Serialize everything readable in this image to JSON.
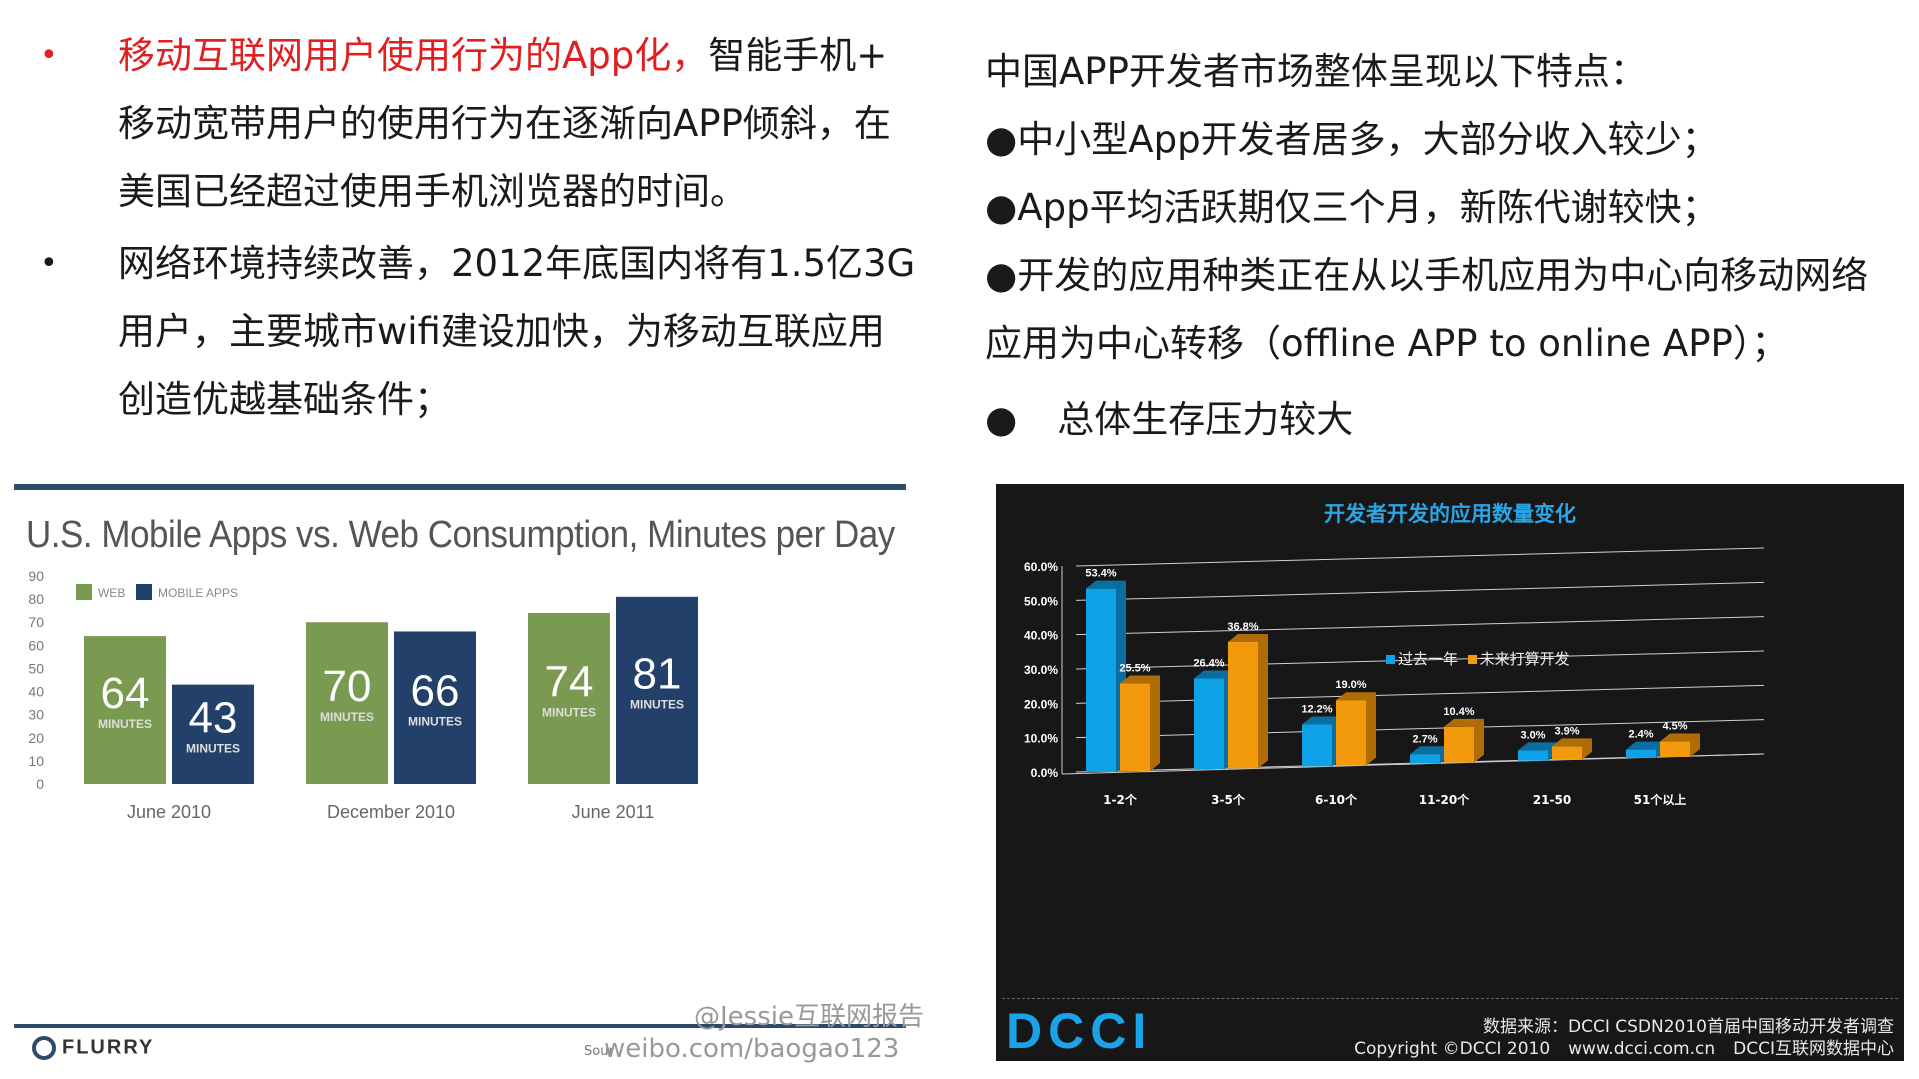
{
  "left_bullets": [
    {
      "bullet": "•",
      "highlight": "移动互联网用户使用行为的App化，",
      "lines": [
        "智能手机+",
        "移动宽带用户的使用行为在逐渐向APP倾斜，在",
        "美国已经超过使用手机浏览器的时间。"
      ]
    },
    {
      "bullet": "•",
      "highlight": "",
      "lines": [
        "网络环境持续改善，2012年底国内将有1.5亿3G",
        "用户，主要城市wifi建设加快，为移动互联应用",
        "创造优越基础条件；"
      ]
    }
  ],
  "right_text": {
    "intro": "中国APP开发者市场整体呈现以下特点：",
    "items": [
      "●中小型App开发者居多，大部分收入较少；",
      "●App平均活跃期仅三个月，新陈代谢较快；",
      "●开发的应用种类正在从以手机应用为中心向移动网络",
      "应用为中心转移（offline APP to online APP）；"
    ],
    "last_bullet": "●",
    "last_text": "总体生存压力较大"
  },
  "flurry_image": {
    "logo": "FLURRY",
    "watermark_1": "@Jessie互联网报告",
    "watermark_2": "weibo.com/baogao123",
    "source_prefix": "Sour"
  },
  "dcci_image": {
    "logo": "DCCI",
    "footer_line1": "数据来源：DCCI CSDN2010首届中国移动开发者调查",
    "footer_copyright": "Copyright ©DCCI 2010",
    "footer_site": "www.dcci.com.cn",
    "footer_org": "DCCI互联网数据中心"
  },
  "colors": {
    "web": "#7a9a51",
    "mobile_apps": "#22406a",
    "past_year": "#0ea1e5",
    "future": "#f39a0c",
    "red_text": "#e02020"
  },
  "chart_data": [
    {
      "type": "bar",
      "title": "U.S. Mobile Apps vs. Web Consumption, Minutes per Day",
      "categories": [
        "June 2010",
        "December 2010",
        "June 2011"
      ],
      "series": [
        {
          "name": "WEB",
          "values": [
            64,
            70,
            74
          ]
        },
        {
          "name": "MOBILE APPS",
          "values": [
            43,
            66,
            81
          ]
        }
      ],
      "value_unit_label": "MINUTES",
      "ylim": [
        0,
        90
      ],
      "yticks": [
        0,
        10,
        20,
        30,
        40,
        50,
        60,
        70,
        80,
        90
      ],
      "legend": "top-left",
      "grid": false
    },
    {
      "type": "bar",
      "title": "开发者开发的应用数量变化",
      "categories": [
        "1-2个",
        "3-5个",
        "6-10个",
        "11-20个",
        "21-50",
        "51个以上"
      ],
      "series": [
        {
          "name": "过去一年",
          "values": [
            53.4,
            26.4,
            12.2,
            2.7,
            3.0,
            2.4
          ]
        },
        {
          "name": "未来打算开发",
          "values": [
            25.5,
            36.8,
            19.0,
            10.4,
            3.9,
            4.5
          ]
        }
      ],
      "ylim": [
        0,
        60
      ],
      "yticks": [
        "0.0%",
        "10.0%",
        "20.0%",
        "30.0%",
        "40.0%",
        "50.0%",
        "60.0%"
      ],
      "legend": "top-center",
      "grid": true
    }
  ]
}
